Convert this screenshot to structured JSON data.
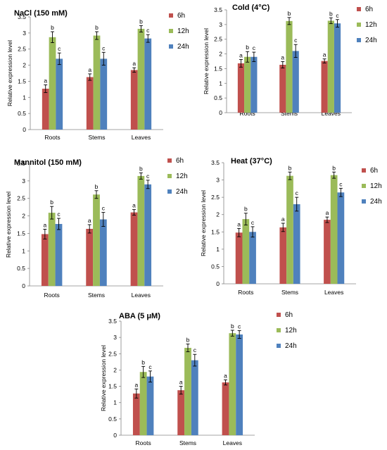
{
  "colors": {
    "6h": "#c0504d",
    "12h": "#9bbb59",
    "24h": "#4f81bd"
  },
  "chart_data": [
    {
      "type": "bar",
      "title": "NaCl (150 mM)",
      "ylabel": "Relative expression level",
      "categories": [
        "Roots",
        "Stems",
        "Leaves"
      ],
      "ylim": [
        0,
        3.5
      ],
      "yticks": [
        "0",
        "0.5",
        "1",
        "1.5",
        "2",
        "2.5",
        "3",
        "3.5"
      ],
      "legend": "right",
      "series": [
        {
          "name": "6h",
          "values": [
            1.27,
            1.63,
            1.85
          ],
          "errors": [
            0.12,
            0.1,
            0.07
          ],
          "letters": [
            "a",
            "a",
            "a"
          ]
        },
        {
          "name": "12h",
          "values": [
            2.87,
            2.92,
            3.13
          ],
          "errors": [
            0.17,
            0.12,
            0.1
          ],
          "letters": [
            "b",
            "b",
            "b"
          ]
        },
        {
          "name": "24h",
          "values": [
            2.2,
            2.2,
            2.83
          ],
          "errors": [
            0.18,
            0.2,
            0.12
          ],
          "letters": [
            "c",
            "c",
            "c"
          ]
        }
      ]
    },
    {
      "type": "bar",
      "title": "Cold (4°C)",
      "ylabel": "Relative expression level",
      "categories": [
        "Roots",
        "Stems",
        "Leaves"
      ],
      "ylim": [
        0,
        3.5
      ],
      "yticks": [
        "0",
        "0.5",
        "1",
        "1.5",
        "2",
        "2.5",
        "3",
        "3.5"
      ],
      "legend": "right",
      "series": [
        {
          "name": "6h",
          "values": [
            1.68,
            1.63,
            1.76
          ],
          "errors": [
            0.13,
            0.11,
            0.07
          ],
          "letters": [
            "a",
            "a",
            "a"
          ]
        },
        {
          "name": "12h",
          "values": [
            1.9,
            3.12,
            3.13
          ],
          "errors": [
            0.18,
            0.12,
            0.1
          ],
          "letters": [
            "b",
            "b",
            "b"
          ]
        },
        {
          "name": "24h",
          "values": [
            1.9,
            2.1,
            3.04
          ],
          "errors": [
            0.16,
            0.22,
            0.13
          ],
          "letters": [
            "c",
            "c",
            "c"
          ]
        }
      ]
    },
    {
      "type": "bar",
      "title": "Mannitol (150 mM)",
      "ylabel": "Relative expression level",
      "categories": [
        "Roots",
        "Stems",
        "Leaves"
      ],
      "ylim": [
        0,
        3.5
      ],
      "yticks": [
        "0",
        "0.5",
        "1",
        "1.5",
        "2",
        "2.5",
        "3",
        "3.5"
      ],
      "legend": "right",
      "series": [
        {
          "name": "6h",
          "values": [
            1.48,
            1.63,
            2.1
          ],
          "errors": [
            0.14,
            0.12,
            0.08
          ],
          "letters": [
            "a",
            "a",
            "a"
          ]
        },
        {
          "name": "12h",
          "values": [
            2.09,
            2.61,
            3.14
          ],
          "errors": [
            0.18,
            0.11,
            0.09
          ],
          "letters": [
            "b",
            "b",
            "b"
          ]
        },
        {
          "name": "24h",
          "values": [
            1.77,
            1.9,
            2.9
          ],
          "errors": [
            0.16,
            0.2,
            0.12
          ],
          "letters": [
            "c",
            "c",
            "c"
          ]
        }
      ]
    },
    {
      "type": "bar",
      "title": "Heat (37°C)",
      "ylabel": "Relative expression level",
      "categories": [
        "Roots",
        "Stems",
        "Leaves"
      ],
      "ylim": [
        0,
        3.5
      ],
      "yticks": [
        "0",
        "0.5",
        "1",
        "1.5",
        "2",
        "2.5",
        "3",
        "3.5"
      ],
      "legend": "right",
      "series": [
        {
          "name": "6h",
          "values": [
            1.48,
            1.63,
            1.85
          ],
          "errors": [
            0.12,
            0.12,
            0.08
          ],
          "letters": [
            "a",
            "a",
            "a"
          ]
        },
        {
          "name": "12h",
          "values": [
            1.87,
            3.12,
            3.14
          ],
          "errors": [
            0.17,
            0.11,
            0.09
          ],
          "letters": [
            "b",
            "b",
            "b"
          ]
        },
        {
          "name": "24h",
          "values": [
            1.5,
            2.3,
            2.64
          ],
          "errors": [
            0.15,
            0.2,
            0.12
          ],
          "letters": [
            "c",
            "c",
            "c"
          ]
        }
      ]
    },
    {
      "type": "bar",
      "title": "ABA (5 μM)",
      "ylabel": "Relative expression level",
      "categories": [
        "Roots",
        "Stems",
        "Leaves"
      ],
      "ylim": [
        0,
        3.5
      ],
      "yticks": [
        "0",
        "0.5",
        "1",
        "1.5",
        "2",
        "2.5",
        "3",
        "3.5"
      ],
      "legend": "right",
      "series": [
        {
          "name": "6h",
          "values": [
            1.28,
            1.38,
            1.62
          ],
          "errors": [
            0.14,
            0.12,
            0.08
          ],
          "letters": [
            "a",
            "a",
            "a"
          ]
        },
        {
          "name": "12h",
          "values": [
            1.94,
            2.68,
            3.13
          ],
          "errors": [
            0.17,
            0.12,
            0.09
          ],
          "letters": [
            "b",
            "b",
            "b"
          ]
        },
        {
          "name": "24h",
          "values": [
            1.8,
            2.3,
            3.09
          ],
          "errors": [
            0.17,
            0.18,
            0.12
          ],
          "letters": [
            "c",
            "c",
            "c"
          ]
        }
      ]
    }
  ]
}
